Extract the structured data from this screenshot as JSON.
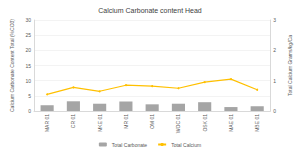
{
  "chart_data": {
    "type": "bar",
    "title": "Calcium Carbonate content Head",
    "categories": [
      "MAR 01",
      "CR 01",
      "MKE 01",
      "MR 01",
      "OM 01",
      "WOC 01",
      "OSK 01",
      "MAE 01",
      "MBE 01"
    ],
    "series": [
      {
        "name": "Total Carbonate",
        "type": "bar",
        "color": "#a5a5a5",
        "values": [
          1.9,
          3.2,
          2.4,
          3.1,
          2.2,
          2.4,
          2.9,
          1.3,
          1.6
        ]
      },
      {
        "name": "Total Calcium",
        "type": "line",
        "axis": "y2",
        "color": "#ffc000",
        "marker": "circle",
        "values": [
          0.55,
          0.78,
          0.65,
          0.85,
          0.82,
          0.75,
          0.95,
          1.05,
          0.7
        ]
      }
    ],
    "y_label": "Calcium Carbonate Content Total (%CO3)",
    "y2_label": "Total Calcium Grams/kg/Ca",
    "ylim": [
      0,
      30
    ],
    "yticks": [
      0,
      5,
      10,
      15,
      20,
      25,
      30
    ],
    "y2lim": [
      0,
      3
    ],
    "y2ticks": [
      0,
      1,
      2,
      3
    ],
    "grid": true,
    "legend": "bottom"
  }
}
